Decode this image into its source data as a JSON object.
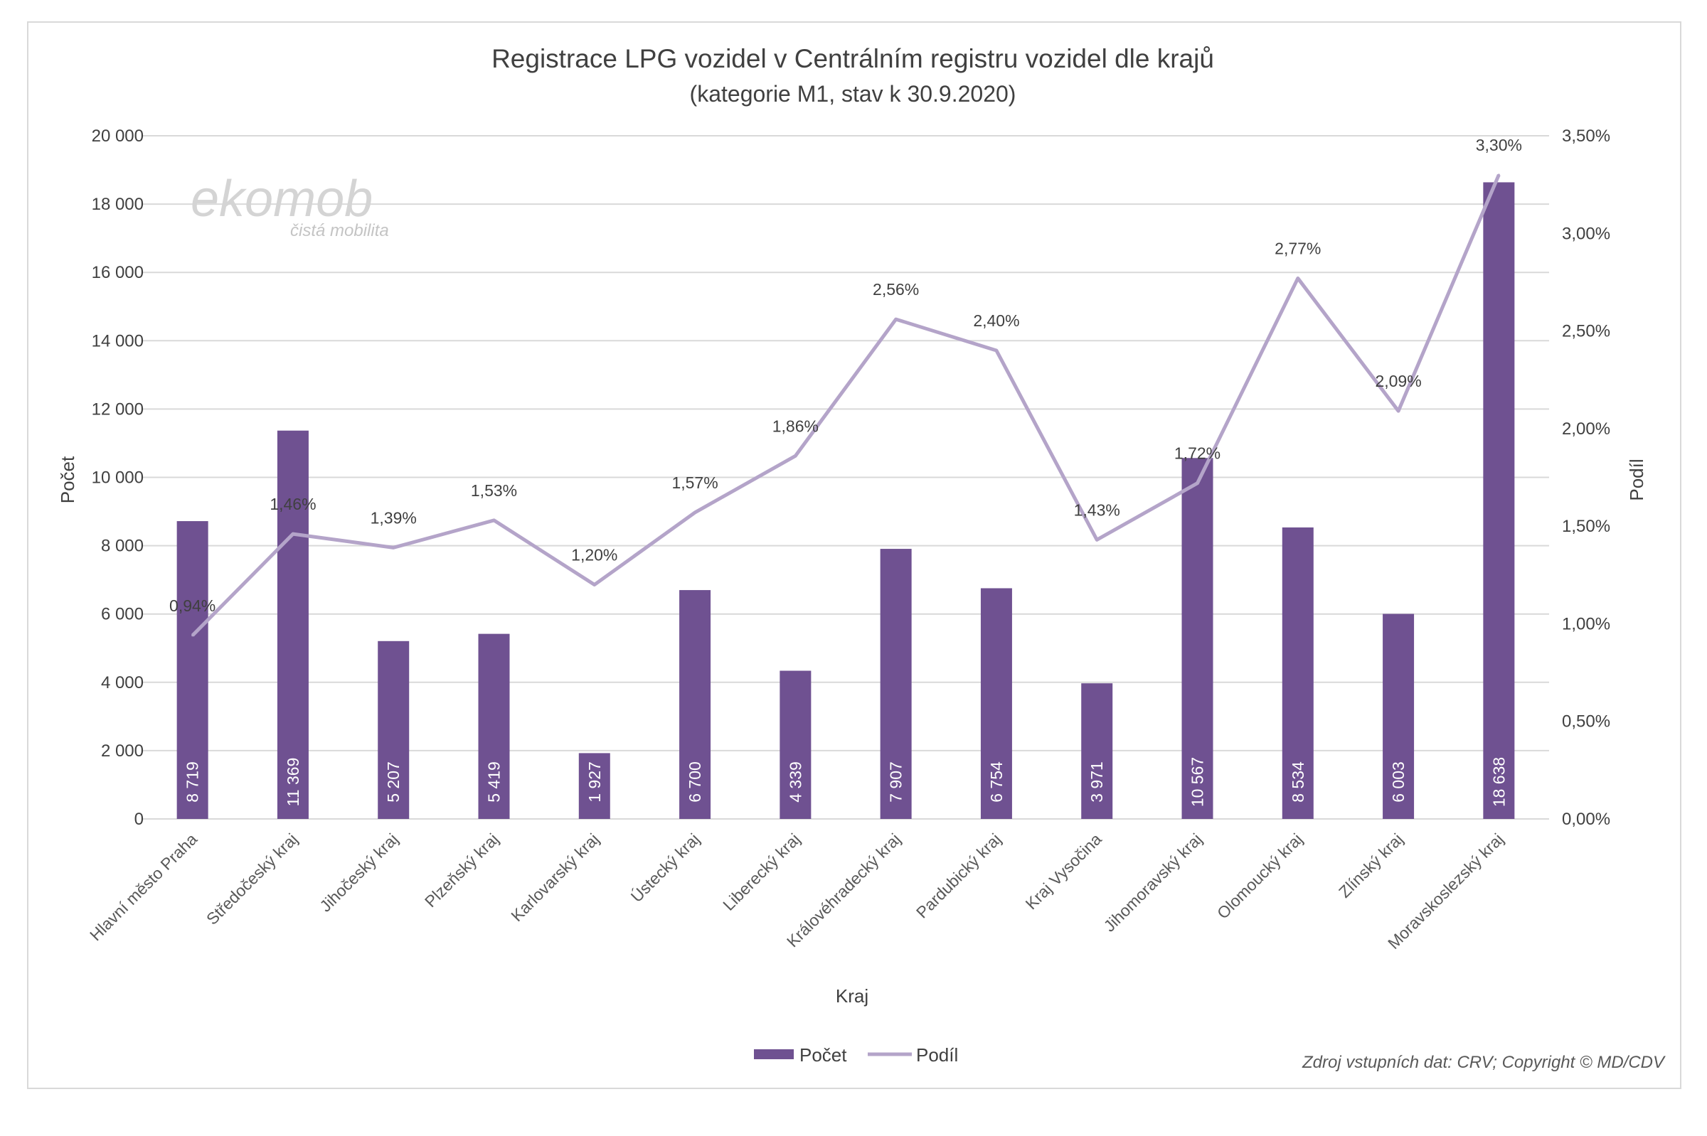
{
  "colors": {
    "bar": "#6f5191",
    "line": "#b4a4c9",
    "grid": "#d9d9d9",
    "text": "#404040"
  },
  "logo": {
    "name": "ekomob",
    "tagline": "čistá mobilita"
  },
  "source_note": "Zdroj vstupních dat: CRV; Copyright © MD/CDV",
  "chart_data": {
    "type": "bar",
    "title": "Registrace LPG vozidel v Centrálním registru vozidel dle krajů",
    "subtitle": "(kategorie M1,  stav k 30.9.2020)",
    "xlabel": "Kraj",
    "ylabel": "Počet",
    "y2label": "Podíl",
    "ylim": [
      0,
      20000
    ],
    "y2lim": [
      0,
      3.5
    ],
    "yticks": [
      "0",
      "2 000",
      "4 000",
      "6 000",
      "8 000",
      "10 000",
      "12 000",
      "14 000",
      "16 000",
      "18 000",
      "20 000"
    ],
    "y2ticks": [
      "0,00%",
      "0,50%",
      "1,00%",
      "1,50%",
      "2,00%",
      "2,50%",
      "3,00%",
      "3,50%"
    ],
    "grid": true,
    "legend_position": "bottom",
    "categories": [
      "Hlavní město Praha",
      "Středočeský kraj",
      "Jihočeský kraj",
      "Plzeňský kraj",
      "Karlovarský kraj",
      "Ústecký kraj",
      "Liberecký kraj",
      "Královéhradecký kraj",
      "Pardubický kraj",
      "Kraj Vysočina",
      "Jihomoravský kraj",
      "Olomoucký kraj",
      "Zlínský kraj",
      "Moravskoslezský kraj"
    ],
    "series": [
      {
        "name": "Počet",
        "type": "bar",
        "axis": "left",
        "values": [
          8719,
          11369,
          5207,
          5419,
          1927,
          6700,
          4339,
          7907,
          6754,
          3971,
          10567,
          8534,
          6003,
          18638
        ],
        "labels": [
          "8 719",
          "11 369",
          "5 207",
          "5 419",
          "1 927",
          "6 700",
          "4 339",
          "7 907",
          "6 754",
          "3 971",
          "10 567",
          "8 534",
          "6 003",
          "18 638"
        ]
      },
      {
        "name": "Podíl",
        "type": "line",
        "axis": "right",
        "values": [
          0.94,
          1.46,
          1.39,
          1.53,
          1.2,
          1.57,
          1.86,
          2.56,
          2.4,
          1.43,
          1.72,
          2.77,
          2.09,
          3.3
        ],
        "labels": [
          "0,94%",
          "1,46%",
          "1,39%",
          "1,53%",
          "1,20%",
          "1,57%",
          "1,86%",
          "2,56%",
          "2,40%",
          "1,43%",
          "1,72%",
          "2,77%",
          "2,09%",
          "3,30%"
        ]
      }
    ]
  }
}
